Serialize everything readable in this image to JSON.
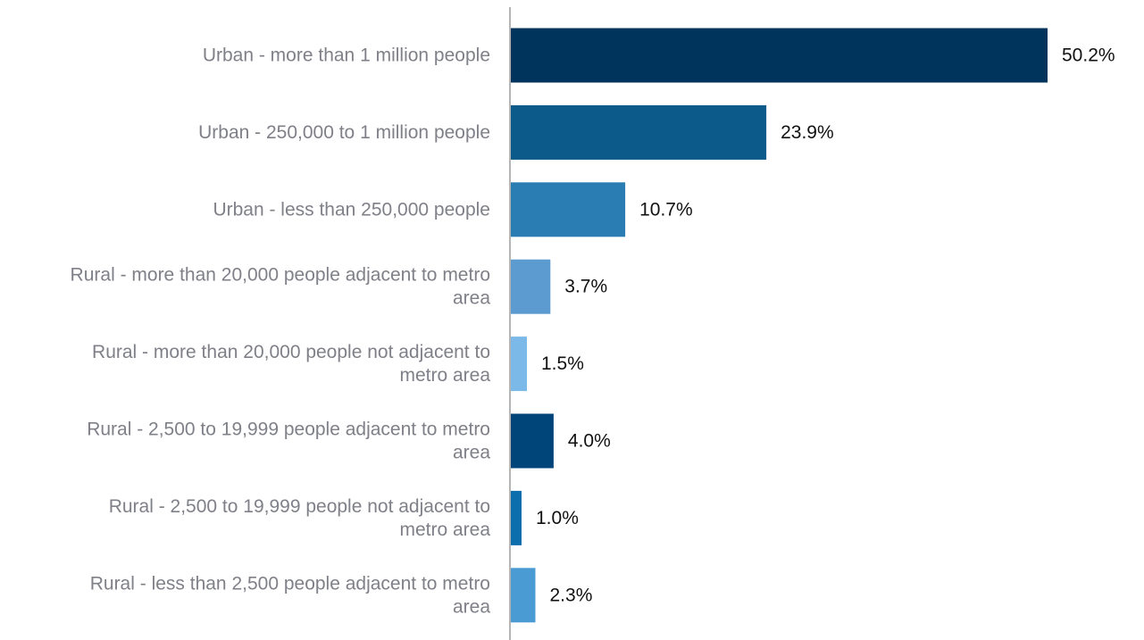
{
  "chart_data": {
    "type": "bar",
    "orientation": "horizontal",
    "categories": [
      "Urban - more than 1 million people",
      "Urban - 250,000 to 1 million people",
      "Urban - less than 250,000 people",
      "Rural - more than 20,000 people adjacent to metro area",
      "Rural - more than 20,000 people not adjacent to metro area",
      "Rural - 2,500 to 19,999 people adjacent to metro area",
      "Rural - 2,500 to 19,999 people not adjacent to metro area",
      "Rural - less than 2,500 people adjacent to metro area"
    ],
    "category_lines": [
      [
        "Urban - more than 1 million people"
      ],
      [
        "Urban - 250,000 to 1 million people"
      ],
      [
        "Urban - less than 250,000 people"
      ],
      [
        "Rural - more than 20,000 people adjacent to metro",
        "area"
      ],
      [
        "Rural - more than 20,000 people not adjacent to",
        "metro area"
      ],
      [
        "Rural - 2,500 to 19,999 people adjacent to metro",
        "area"
      ],
      [
        "Rural - 2,500 to 19,999 people not adjacent to",
        "metro area"
      ],
      [
        "Rural - less than 2,500 people adjacent to metro",
        "area"
      ]
    ],
    "values": [
      50.2,
      23.9,
      10.7,
      3.7,
      1.5,
      4.0,
      1.0,
      2.3
    ],
    "value_labels": [
      "50.2%",
      "23.9%",
      "10.7%",
      "3.7%",
      "1.5%",
      "4.0%",
      "1.0%",
      "2.3%"
    ],
    "bar_colors": [
      "#00345c",
      "#0c5a8a",
      "#2a7db2",
      "#5b9bd0",
      "#7bb9e8",
      "#00457a",
      "#0d6ead",
      "#4a9bd3"
    ],
    "title": "",
    "xlabel": "",
    "ylabel": "",
    "xlim": [
      0,
      50.2
    ],
    "grid": false,
    "legend": "none",
    "axis_color": "#b5b5b5"
  }
}
